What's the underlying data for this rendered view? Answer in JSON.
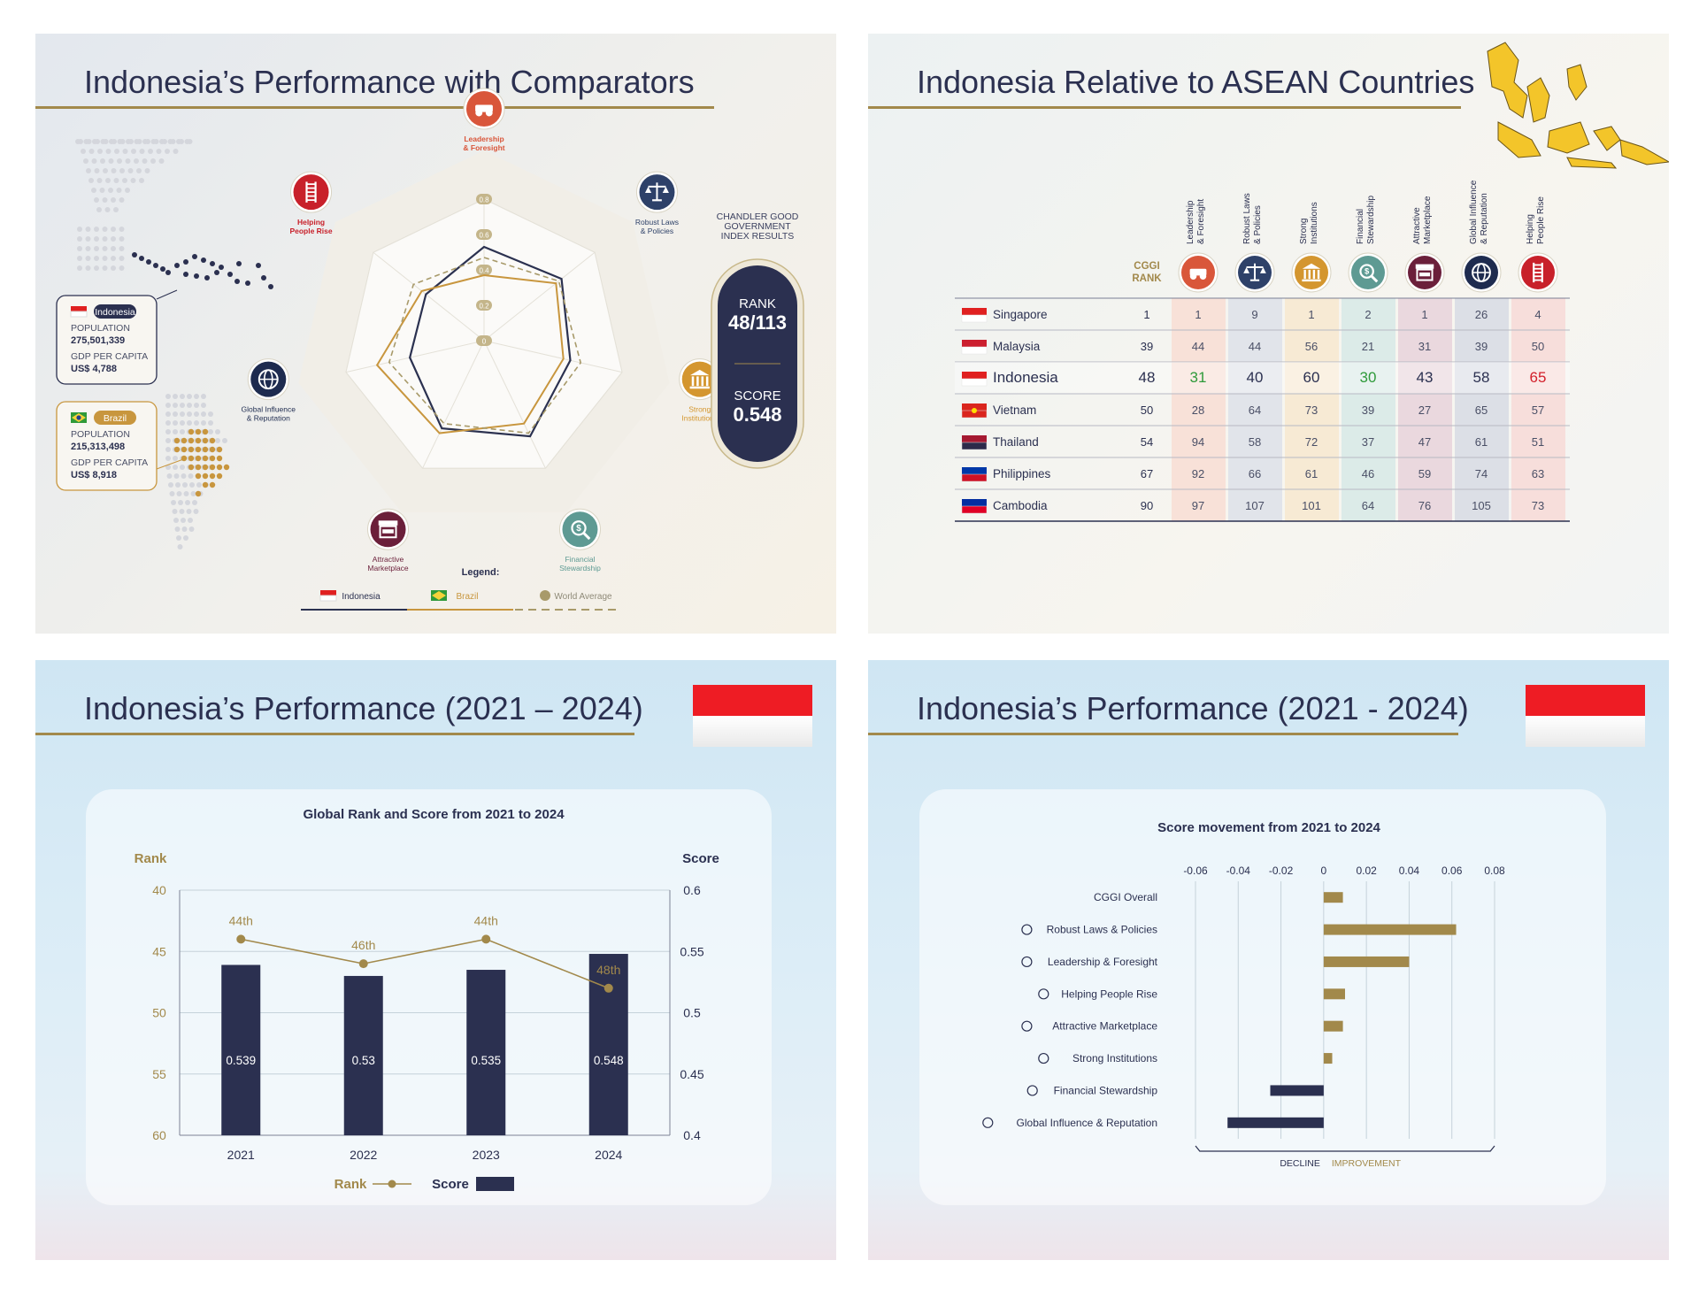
{
  "panel1": {
    "title": "Indonesia’s Performance with Comparators",
    "rank_box": {
      "header_lines": [
        "CHANDLER GOOD",
        "GOVERNMENT",
        "INDEX RESULTS"
      ],
      "rank_label": "RANK",
      "rank_value": "48/113",
      "score_label": "SCORE",
      "score_value": "0.548"
    },
    "indonesia_box": {
      "name": "Indonesia",
      "population_label": "POPULATION",
      "population": "275,501,339",
      "gdp_label": "GDP PER CAPITA",
      "gdp": "US$ 4,788"
    },
    "brazil_box": {
      "name": "Brazil",
      "population_label": "POPULATION",
      "population": "215,313,498",
      "gdp_label": "GDP PER CAPITA",
      "gdp": "US$ 8,918"
    },
    "legend_title": "Legend:",
    "legend": [
      {
        "label": "Indonesia",
        "color": "#2b3150",
        "style": "solid"
      },
      {
        "label": "Brazil",
        "color": "#c8963e",
        "style": "solid"
      },
      {
        "label": "World Average",
        "color": "#a89a6a",
        "style": "dashed"
      }
    ],
    "colors": {
      "leadership": "#d9563a",
      "laws": "#2e4169",
      "institutions": "#d4962f",
      "financial": "#5e9a93",
      "marketplace": "#6b1f3a",
      "global": "#1e2b4f",
      "helping": "#c8202a"
    }
  },
  "chart_data": [
    {
      "type": "radar",
      "title": "",
      "axes": [
        "Leadership & Foresight",
        "Robust Laws & Policies",
        "Strong Institutions",
        "Financial Stewardship",
        "Attractive Marketplace",
        "Global Influence & Reputation",
        "Helping People Rise"
      ],
      "axis_icons": [
        "binoculars-icon",
        "scales-icon",
        "institution-icon",
        "magnifier-dollar-icon",
        "marketplace-icon",
        "globe-icon",
        "ladder-icon"
      ],
      "ticks": [
        "0",
        "0.2",
        "0.4",
        "0.6",
        "0.8"
      ],
      "rlim": [
        0,
        0.8
      ],
      "series": [
        {
          "name": "Indonesia",
          "values": [
            0.53,
            0.56,
            0.5,
            0.6,
            0.55,
            0.43,
            0.42
          ]
        },
        {
          "name": "Brazil",
          "values": [
            0.37,
            0.52,
            0.46,
            0.52,
            0.58,
            0.62,
            0.45
          ]
        },
        {
          "name": "World Average",
          "values": [
            0.47,
            0.54,
            0.56,
            0.58,
            0.52,
            0.55,
            0.51
          ]
        }
      ]
    },
    {
      "type": "table",
      "title": "Indonesia Relative to ASEAN Countries",
      "rank_header": [
        "CGGI",
        "RANK"
      ],
      "columns": [
        {
          "name": "Leadership & Foresight",
          "lines": [
            "Leadership",
            "& Foresight"
          ],
          "icon": "binoculars-icon",
          "color": "#d9563a",
          "tint": "#f8e1d8"
        },
        {
          "name": "Robust Laws & Policies",
          "lines": [
            "Robust Laws",
            "& Policies"
          ],
          "icon": "scales-icon",
          "color": "#2e4169",
          "tint": "#e1e4ea"
        },
        {
          "name": "Strong Institutions",
          "lines": [
            "Strong",
            "Institutions"
          ],
          "icon": "institution-icon",
          "color": "#d4962f",
          "tint": "#f7ead4"
        },
        {
          "name": "Financial Stewardship",
          "lines": [
            "Financial",
            "Stewardship"
          ],
          "icon": "magnifier-dollar-icon",
          "color": "#5e9a93",
          "tint": "#dcebe8"
        },
        {
          "name": "Attractive Marketplace",
          "lines": [
            "Attractive",
            "Marketplace"
          ],
          "icon": "marketplace-icon",
          "color": "#6b1f3a",
          "tint": "#ead8de"
        },
        {
          "name": "Global Influence & Reputation",
          "lines": [
            "Global Influence",
            "& Reputation"
          ],
          "icon": "globe-icon",
          "color": "#1e2b4f",
          "tint": "#dcdfe6"
        },
        {
          "name": "Helping People Rise",
          "lines": [
            "Helping",
            "People Rise"
          ],
          "icon": "ladder-icon",
          "color": "#c8202a",
          "tint": "#f7dedb"
        }
      ],
      "rows": [
        {
          "country": "Singapore",
          "flag": "singapore-flag-icon",
          "rank": 1,
          "values": [
            1,
            9,
            1,
            2,
            1,
            26,
            4
          ]
        },
        {
          "country": "Malaysia",
          "flag": "malaysia-flag-icon",
          "rank": 39,
          "values": [
            44,
            44,
            56,
            21,
            31,
            39,
            50
          ]
        },
        {
          "country": "Indonesia",
          "flag": "indonesia-flag-icon",
          "rank": 48,
          "values": [
            31,
            40,
            60,
            30,
            43,
            58,
            65
          ],
          "highlight": true,
          "value_colors": [
            "#2f9a3a",
            "#2b3050",
            "#2b3050",
            "#2f9a3a",
            "#2b3050",
            "#2b3050",
            "#d2202b"
          ]
        },
        {
          "country": "Vietnam",
          "flag": "vietnam-flag-icon",
          "rank": 50,
          "values": [
            28,
            64,
            73,
            39,
            27,
            65,
            57
          ]
        },
        {
          "country": "Thailand",
          "flag": "thailand-flag-icon",
          "rank": 54,
          "values": [
            94,
            58,
            72,
            37,
            47,
            61,
            51
          ]
        },
        {
          "country": "Philippines",
          "flag": "philippines-flag-icon",
          "rank": 67,
          "values": [
            92,
            66,
            61,
            46,
            59,
            74,
            63
          ]
        },
        {
          "country": "Cambodia",
          "flag": "cambodia-flag-icon",
          "rank": 90,
          "values": [
            97,
            107,
            101,
            64,
            76,
            105,
            73
          ]
        }
      ]
    },
    {
      "type": "bar+line",
      "title": "Global Rank and Score from 2021 to 2024",
      "categories": [
        "2021",
        "2022",
        "2023",
        "2024"
      ],
      "left_axis": {
        "label": "Rank",
        "ticks": [
          "40",
          "45",
          "50",
          "55",
          "60"
        ],
        "range": [
          40,
          60
        ],
        "inverted": true
      },
      "right_axis": {
        "label": "Score",
        "ticks": [
          "0.6",
          "0.55",
          "0.5",
          "0.45",
          "0.4"
        ],
        "range": [
          0.4,
          0.6
        ]
      },
      "series": [
        {
          "name": "Rank",
          "type": "line",
          "values": [
            44,
            46,
            44,
            48
          ],
          "labels": [
            "44th",
            "46th",
            "44th",
            "48th"
          ],
          "color": "#a2894b"
        },
        {
          "name": "Score",
          "type": "bar",
          "values": [
            0.539,
            0.53,
            0.535,
            0.548
          ],
          "labels": [
            "0.539",
            "0.53",
            "0.535",
            "0.548"
          ],
          "color": "#2b3050"
        }
      ],
      "grid": true
    },
    {
      "type": "bar",
      "orientation": "horizontal",
      "title": "Score movement from 2021 to 2024",
      "categories": [
        "CGGI Overall",
        "Robust Laws & Policies",
        "Leadership & Foresight",
        "Helping People Rise",
        "Attractive Marketplace",
        "Strong Institutions",
        "Financial Stewardship",
        "Global Influence & Reputation"
      ],
      "category_icons": [
        "",
        "scales-icon",
        "binoculars-icon",
        "ladder-icon",
        "marketplace-icon",
        "institution-icon",
        "magnifier-dollar-icon",
        "globe-icon"
      ],
      "values": [
        0.009,
        0.062,
        0.04,
        0.01,
        0.009,
        0.004,
        -0.025,
        -0.045
      ],
      "xlim": [
        -0.06,
        0.08
      ],
      "x_ticks": [
        "-0.06",
        "-0.04",
        "-0.02",
        "0",
        "0.02",
        "0.04",
        "0.06",
        "0.08"
      ],
      "decline_label": "DECLINE",
      "improvement_label": "IMPROVEMENT",
      "positive_color": "#a2894b",
      "negative_color": "#2b3050"
    }
  ],
  "panel2": {
    "title": "Indonesia Relative to ASEAN Countries"
  },
  "panel3": {
    "title": "Indonesia’s Performance (2021 – 2024)"
  },
  "panel4": {
    "title": "Indonesia’s Performance (2021 - 2024)"
  }
}
